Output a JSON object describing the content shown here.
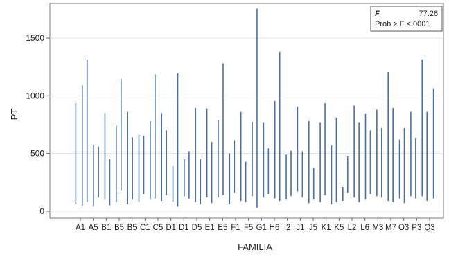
{
  "chart_data": {
    "type": "range",
    "title": "",
    "xlabel": "FAMILIA",
    "ylabel": "PT",
    "ylim": [
      -60,
      1800
    ],
    "yticks": [
      0,
      500,
      1000,
      1500
    ],
    "grid": "horizontal",
    "series_color": "#4a6fa5",
    "tick_labels": [
      "A1",
      "A5",
      "B1",
      "B5",
      "B5",
      "C1",
      "C5",
      "D1",
      "D1",
      "D5",
      "E1",
      "E5",
      "F1",
      "F5",
      "G1",
      "H6",
      "I2",
      "J1",
      "J5",
      "K1",
      "K5",
      "L2",
      "L6",
      "M3",
      "M7",
      "O3",
      "P3",
      "Q3"
    ],
    "stats": {
      "f_label": "F",
      "f_value": "77.26",
      "prob_label": "Prob > F <.0001"
    },
    "series": [
      {
        "values": [
          {
            "min": 60,
            "max": 935
          },
          {
            "min": 50,
            "max": 1090
          },
          {
            "min": 80,
            "max": 1315
          },
          {
            "min": 40,
            "max": 575
          },
          {
            "min": 120,
            "max": 560
          },
          {
            "min": 100,
            "max": 850
          },
          {
            "min": 50,
            "max": 450
          },
          {
            "min": 80,
            "max": 740
          },
          {
            "min": 180,
            "max": 1145
          },
          {
            "min": 60,
            "max": 860
          },
          {
            "min": 100,
            "max": 640
          },
          {
            "min": 80,
            "max": 660
          },
          {
            "min": 150,
            "max": 655
          },
          {
            "min": 100,
            "max": 780
          },
          {
            "min": 110,
            "max": 1185
          },
          {
            "min": 90,
            "max": 850
          },
          {
            "min": 140,
            "max": 700
          },
          {
            "min": 80,
            "max": 390
          },
          {
            "min": 40,
            "max": 1195
          },
          {
            "min": 130,
            "max": 450
          },
          {
            "min": 110,
            "max": 520
          },
          {
            "min": 80,
            "max": 895
          },
          {
            "min": 60,
            "max": 450
          },
          {
            "min": 120,
            "max": 890
          },
          {
            "min": 70,
            "max": 600
          },
          {
            "min": 120,
            "max": 790
          },
          {
            "min": 140,
            "max": 1280
          },
          {
            "min": 60,
            "max": 500
          },
          {
            "min": 160,
            "max": 615
          },
          {
            "min": 90,
            "max": 860
          },
          {
            "min": 80,
            "max": 430
          },
          {
            "min": 130,
            "max": 775
          },
          {
            "min": 30,
            "max": 1755
          },
          {
            "min": 120,
            "max": 770
          },
          {
            "min": 150,
            "max": 545
          },
          {
            "min": 110,
            "max": 955
          },
          {
            "min": 90,
            "max": 1380
          },
          {
            "min": 100,
            "max": 490
          },
          {
            "min": 130,
            "max": 525
          },
          {
            "min": 170,
            "max": 905
          },
          {
            "min": 120,
            "max": 520
          },
          {
            "min": 70,
            "max": 780
          },
          {
            "min": 100,
            "max": 375
          },
          {
            "min": 80,
            "max": 770
          },
          {
            "min": 140,
            "max": 935
          },
          {
            "min": 60,
            "max": 570
          },
          {
            "min": 80,
            "max": 810
          },
          {
            "min": 90,
            "max": 210
          },
          {
            "min": 160,
            "max": 480
          },
          {
            "min": 120,
            "max": 915
          },
          {
            "min": 80,
            "max": 770
          },
          {
            "min": 100,
            "max": 845
          },
          {
            "min": 150,
            "max": 700
          },
          {
            "min": 130,
            "max": 880
          },
          {
            "min": 120,
            "max": 720
          },
          {
            "min": 90,
            "max": 1205
          },
          {
            "min": 80,
            "max": 895
          },
          {
            "min": 110,
            "max": 620
          },
          {
            "min": 70,
            "max": 720
          },
          {
            "min": 130,
            "max": 860
          },
          {
            "min": 110,
            "max": 635
          },
          {
            "min": 130,
            "max": 1315
          },
          {
            "min": 90,
            "max": 860
          },
          {
            "min": 110,
            "max": 1065
          }
        ]
      }
    ]
  }
}
